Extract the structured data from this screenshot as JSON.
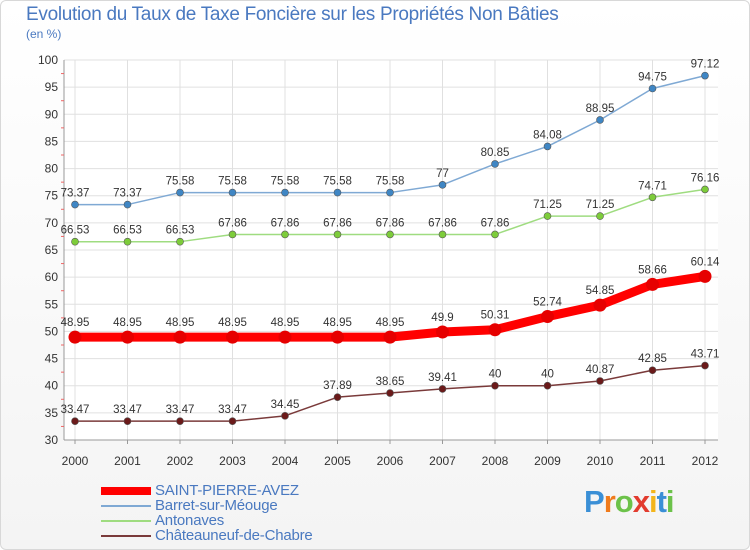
{
  "title": "Evolution du Taux de Taxe Foncière sur les Propriétés Non Bâties",
  "unit_label": "(en %)",
  "logo_text": "Proxiti",
  "chart_data": {
    "type": "line",
    "x": [
      "2000",
      "2001",
      "2002",
      "2003",
      "2004",
      "2005",
      "2006",
      "2007",
      "2008",
      "2009",
      "2010",
      "2011",
      "2012"
    ],
    "ylim": [
      30,
      100
    ],
    "yticks": [
      30,
      35,
      40,
      45,
      50,
      55,
      60,
      65,
      70,
      75,
      80,
      85,
      90,
      95,
      100
    ],
    "grid": true,
    "legend_position": "bottom-left",
    "series": [
      {
        "name": "Barret-sur-Méouge",
        "color": "#7fa9d4",
        "marker_color": "#3f86c4",
        "values": [
          73.37,
          73.37,
          75.58,
          75.58,
          75.58,
          75.58,
          75.58,
          77,
          80.85,
          84.08,
          88.95,
          94.75,
          97.12
        ],
        "labels": [
          "73.37",
          "73.37",
          "75.58",
          "75.58",
          "75.58",
          "75.58",
          "75.58",
          "77",
          "80.85",
          "84.08",
          "88.95",
          "94.75",
          "97.12"
        ]
      },
      {
        "name": "Antonaves",
        "color": "#9fdc80",
        "marker_color": "#7dcc3a",
        "values": [
          66.53,
          66.53,
          66.53,
          67.86,
          67.86,
          67.86,
          67.86,
          67.86,
          67.86,
          71.25,
          71.25,
          74.71,
          76.16
        ],
        "labels": [
          "66.53",
          "66.53",
          "66.53",
          "67.86",
          "67.86",
          "67.86",
          "67.86",
          "67.86",
          "67.86",
          "71.25",
          "71.25",
          "74.71",
          "76.16"
        ]
      },
      {
        "name": "SAINT-PIERRE-AVEZ",
        "color": "#ff0000",
        "marker_color": "#e60000",
        "values": [
          48.95,
          48.95,
          48.95,
          48.95,
          48.95,
          48.95,
          48.95,
          49.9,
          50.31,
          52.74,
          54.85,
          58.66,
          60.14
        ],
        "labels": [
          "48.95",
          "48.95",
          "48.95",
          "48.95",
          "48.95",
          "48.95",
          "48.95",
          "49.9",
          "50.31",
          "52.74",
          "54.85",
          "58.66",
          "60.14"
        ]
      },
      {
        "name": "Châteauneuf-de-Chabre",
        "color": "#7a3a3a",
        "marker_color": "#6b1a1a",
        "values": [
          33.47,
          33.47,
          33.47,
          33.47,
          34.45,
          37.89,
          38.65,
          39.41,
          40,
          40,
          40.87,
          42.85,
          43.71
        ],
        "labels": [
          "33.47",
          "33.47",
          "33.47",
          "33.47",
          "34.45",
          "37.89",
          "38.65",
          "39.41",
          "40",
          "40",
          "40.87",
          "42.85",
          "43.71"
        ]
      }
    ],
    "legend": [
      "SAINT-PIERRE-AVEZ",
      "Barret-sur-Méouge",
      "Antonaves",
      "Châteauneuf-de-Chabre"
    ]
  }
}
